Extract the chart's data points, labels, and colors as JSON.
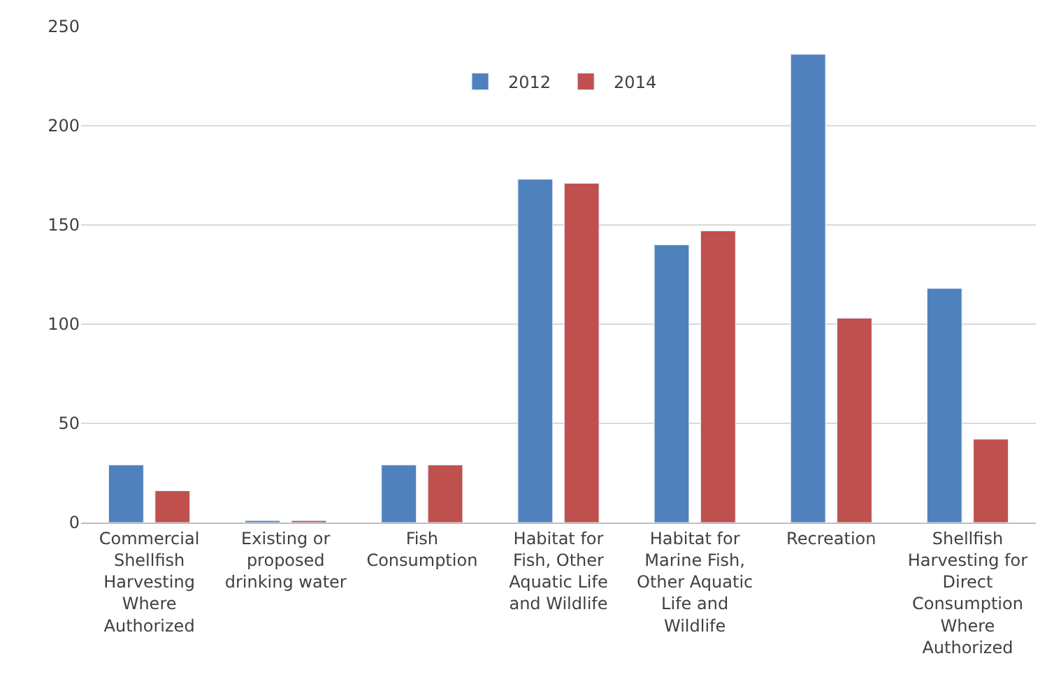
{
  "chart_data": {
    "type": "bar",
    "categories": [
      "Commercial Shellfish Harvesting Where Authorized",
      "Existing or proposed drinking water",
      "Fish Consumption",
      "Habitat for Fish, Other Aquatic Life and Wildlife",
      "Habitat for Marine Fish, Other Aquatic Life and Wildlife",
      "Recreation",
      "Shellfish Harvesting for Direct Consumption Where Authorized"
    ],
    "series": [
      {
        "name": "2012",
        "color": "#4f81bd",
        "values": [
          29,
          1,
          29,
          173,
          140,
          236,
          118
        ]
      },
      {
        "name": "2014",
        "color": "#c0504d",
        "values": [
          16,
          1,
          29,
          171,
          147,
          103,
          42
        ]
      }
    ],
    "ylim": [
      0,
      250
    ],
    "yticks": [
      0,
      50,
      100,
      150,
      200,
      250
    ],
    "grid": "y",
    "legend": "top"
  }
}
